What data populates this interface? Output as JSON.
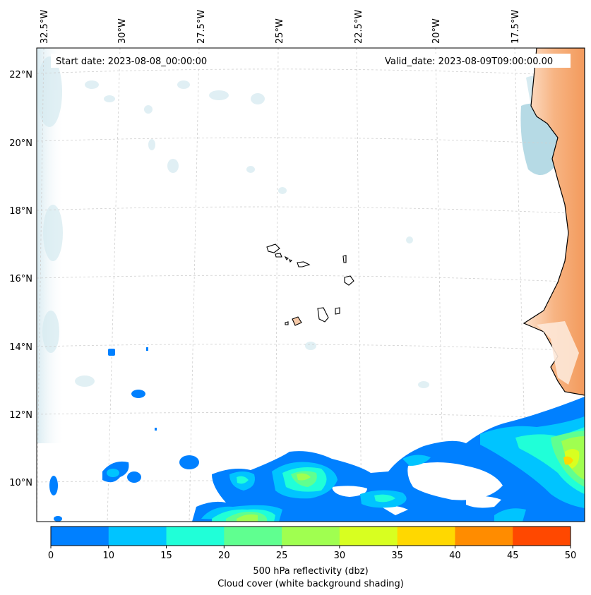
{
  "map": {
    "start_date": "Start date: 2023-08-08_00:00:00",
    "valid_date": "Valid_date: 2023-08-09T09:00:00.00",
    "lon_labels": [
      "32.5°W",
      "30°W",
      "27.5°W",
      "25°W",
      "22.5°W",
      "20°W",
      "17.5°W"
    ],
    "lat_labels": [
      "22°N",
      "20°N",
      "18°N",
      "16°N",
      "14°N",
      "12°N",
      "10°N"
    ]
  },
  "colorbar": {
    "ticks": [
      "0",
      "10",
      "15",
      "20",
      "25",
      "30",
      "35",
      "40",
      "45",
      "50"
    ],
    "colors": [
      "#0080ff",
      "#00c4ff",
      "#20ffd8",
      "#60ff90",
      "#a0ff50",
      "#d8ff20",
      "#ffd800",
      "#ff8c00",
      "#ff4800"
    ],
    "label_line1": "500 hPa reflectivity (dbz)",
    "label_line2": "Cloud cover (white background shading)"
  },
  "colors": {
    "land_orange": "#f5a26a",
    "cloud_blue": "#bcdde8",
    "coastline": "#000000",
    "gridline": "#c8c8c8"
  }
}
